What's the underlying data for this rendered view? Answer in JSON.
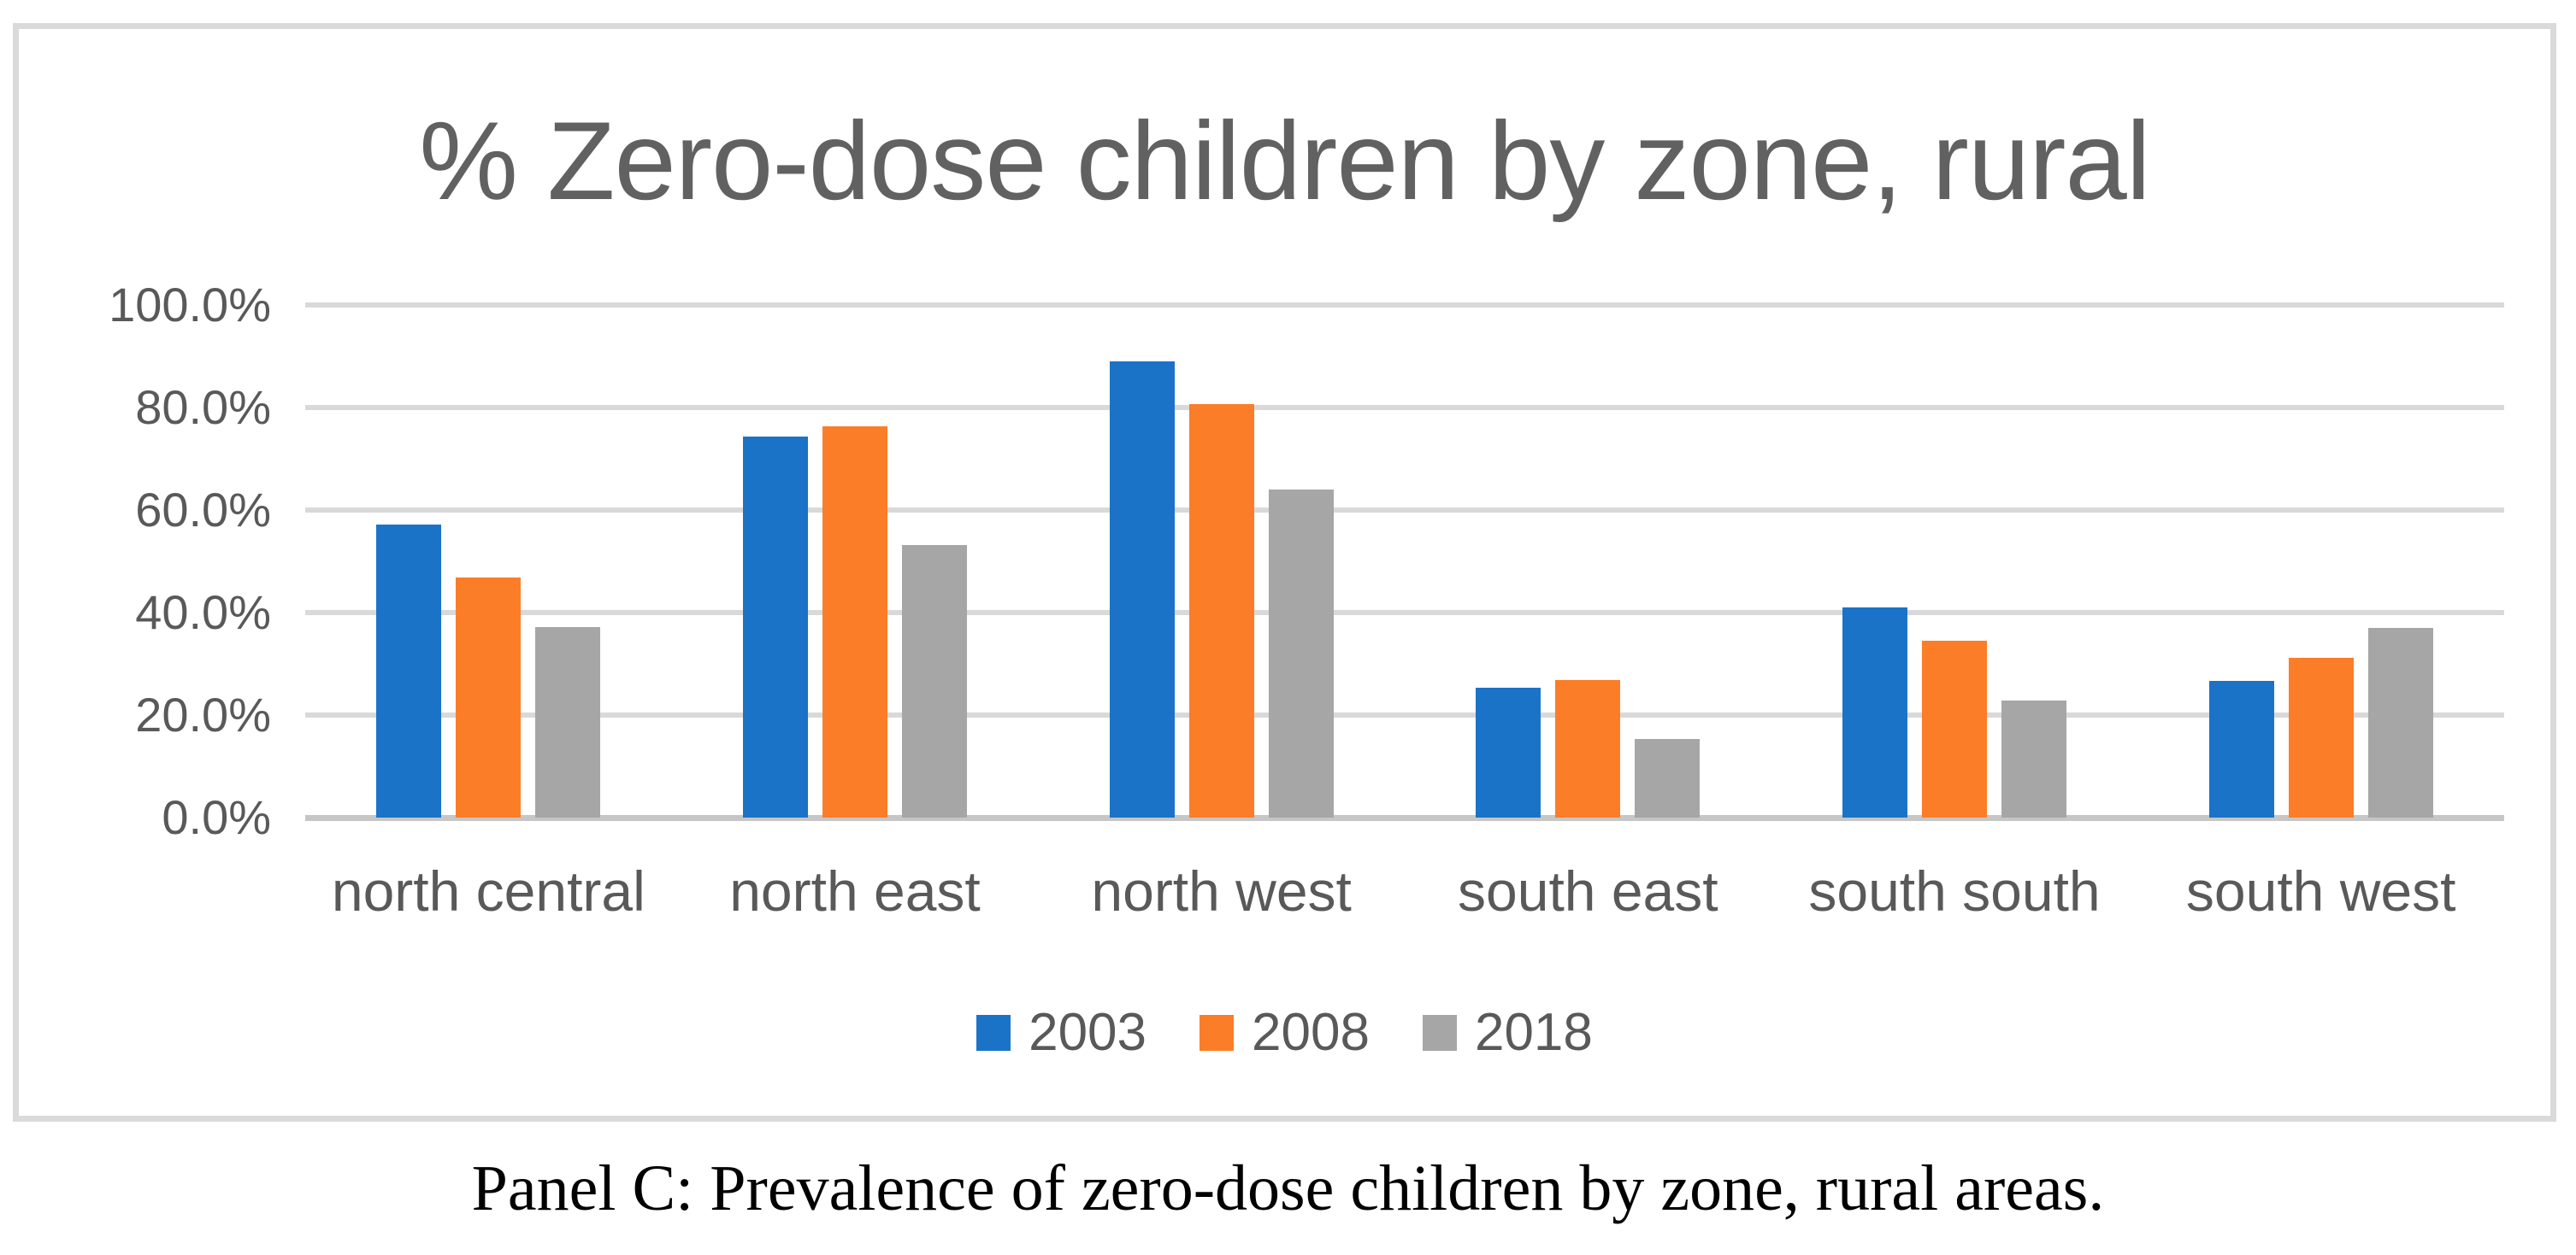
{
  "caption": "Panel C: Prevalence of zero-dose children by zone, rural areas.",
  "chart_data": {
    "type": "bar",
    "title": "% Zero-dose children by zone, rural",
    "categories": [
      "north central",
      "north east",
      "north west",
      "south east",
      "south south",
      "south west"
    ],
    "series": [
      {
        "name": "2003",
        "color": "#1b73c8",
        "values": [
          57.1,
          74.4,
          89.0,
          25.3,
          41.0,
          26.7
        ]
      },
      {
        "name": "2008",
        "color": "#fb7d28",
        "values": [
          46.9,
          76.3,
          80.7,
          26.8,
          34.5,
          31.1
        ]
      },
      {
        "name": "2018",
        "color": "#a6a6a6",
        "values": [
          37.1,
          53.1,
          64.0,
          15.3,
          22.9,
          37.0
        ]
      }
    ],
    "xlabel": "",
    "ylabel": "",
    "ylim": [
      0,
      100
    ],
    "ytick_labels": [
      "100.0%",
      "80.0%",
      "60.0%",
      "40.0%",
      "20.0%",
      "0.0%"
    ],
    "ytick_step_percent": 20,
    "grid": true,
    "legend_position": "bottom",
    "colors": {
      "gridline": "#d9d9d9",
      "axis_line": "#c6c6c6",
      "frame_border": "#dadada",
      "title_text": "#616161",
      "tick_text": "#595959",
      "caption_text": "#000000",
      "background": "#ffffff"
    }
  }
}
